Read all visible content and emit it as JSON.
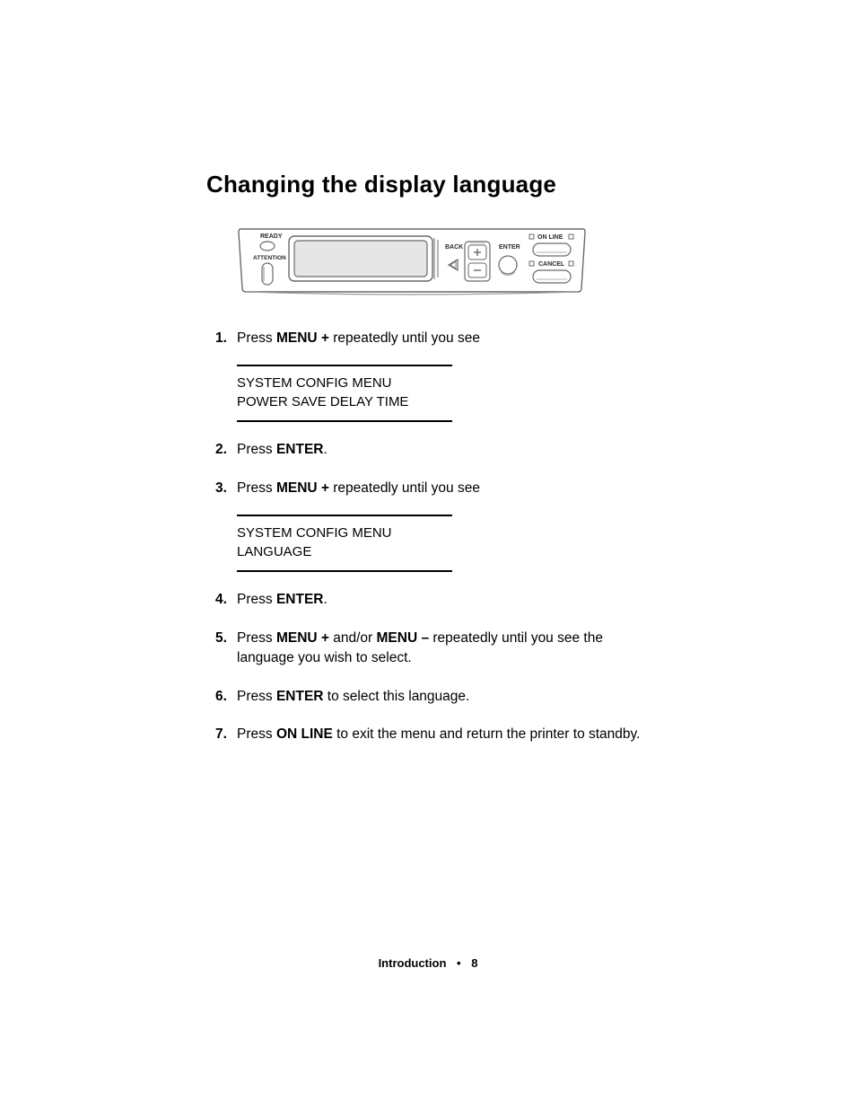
{
  "heading": "Changing the display language",
  "panel": {
    "labels": {
      "ready": "READY",
      "attention": "ATTENTION",
      "back": "BACK",
      "enter": "ENTER",
      "online": "ON LINE",
      "cancel": "CANCEL"
    },
    "colors": {
      "stroke": "#6a6a6a",
      "screen_fill": "#e6e6e6",
      "shadow": "#9a9a9a",
      "text": "#2a2a2a"
    },
    "stroke_width": 1.4
  },
  "steps": [
    {
      "parts": [
        {
          "t": "Press "
        },
        {
          "t": "MENU +",
          "b": true
        },
        {
          "t": " repeatedly until you see"
        }
      ],
      "display": [
        "SYSTEM CONFIG MENU",
        "POWER SAVE DELAY TIME"
      ]
    },
    {
      "parts": [
        {
          "t": "Press "
        },
        {
          "t": "ENTER",
          "b": true
        },
        {
          "t": "."
        }
      ]
    },
    {
      "parts": [
        {
          "t": "Press "
        },
        {
          "t": "MENU +",
          "b": true
        },
        {
          "t": " repeatedly until you see"
        }
      ],
      "display": [
        "SYSTEM CONFIG MENU",
        "LANGUAGE"
      ]
    },
    {
      "parts": [
        {
          "t": "Press "
        },
        {
          "t": "ENTER",
          "b": true
        },
        {
          "t": "."
        }
      ]
    },
    {
      "parts": [
        {
          "t": "Press "
        },
        {
          "t": "MENU +",
          "b": true
        },
        {
          "t": " and/or "
        },
        {
          "t": "MENU –",
          "b": true
        },
        {
          "t": " repeatedly until you see the language you wish to select."
        }
      ]
    },
    {
      "parts": [
        {
          "t": "Press "
        },
        {
          "t": "ENTER",
          "b": true
        },
        {
          "t": " to select this language."
        }
      ]
    },
    {
      "parts": [
        {
          "t": "Press "
        },
        {
          "t": "ON LINE",
          "b": true
        },
        {
          "t": " to exit the menu and return the printer to standby."
        }
      ]
    }
  ],
  "footer": {
    "section": "Introduction",
    "page": "8"
  }
}
